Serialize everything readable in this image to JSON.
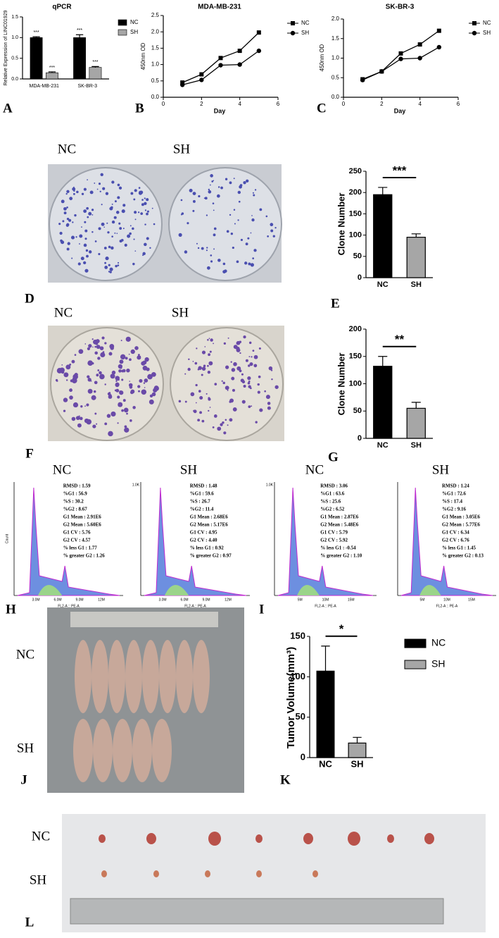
{
  "chart_data": [
    {
      "type": "bar",
      "panel": "A",
      "title": "qPCR",
      "y_label": "Relative Expression of LINC01929",
      "categories": [
        "MDA-MB-231",
        "SK-BR-3"
      ],
      "series": [
        {
          "name": "NC",
          "color": "#000000",
          "values": [
            1.0,
            1.0
          ],
          "errors": [
            0.02,
            0.07
          ],
          "annotations": [
            "***",
            "***"
          ]
        },
        {
          "name": "SH",
          "color": "#a6a6a6",
          "values": [
            0.15,
            0.28
          ],
          "errors": [
            0.02,
            0.02
          ],
          "annotations": [
            "***",
            "***"
          ]
        }
      ],
      "ylim": [
        0,
        1.5
      ],
      "yticks": [
        {
          "value": 0,
          "label": "0.0"
        },
        0.5,
        {
          "value": 1,
          "label": "1.0"
        },
        1.5
      ]
    },
    {
      "type": "line",
      "panel": "B",
      "title": "MDA-MB-231",
      "x_label": "Day",
      "y_label": "450nm OD",
      "x": [
        1,
        2,
        3,
        4,
        5
      ],
      "series": [
        {
          "name": "NC",
          "color": "#000000",
          "marker": "square",
          "values": [
            0.45,
            0.7,
            1.2,
            1.42,
            1.98
          ]
        },
        {
          "name": "SH",
          "color": "#000000",
          "marker": "circle",
          "values": [
            0.38,
            0.53,
            0.98,
            1.0,
            1.42
          ]
        }
      ],
      "xlim": [
        0,
        6
      ],
      "xticks": [
        0,
        2,
        4,
        6
      ],
      "ylim": [
        0,
        2.5
      ],
      "yticks": [
        {
          "value": 0,
          "label": "0.0"
        },
        0.5,
        {
          "value": 1,
          "label": "1.0"
        },
        1.5,
        {
          "value": 2,
          "label": "2.0"
        },
        2.5
      ]
    },
    {
      "type": "line",
      "panel": "C",
      "title": "SK-BR-3",
      "x_label": "Day",
      "y_label": "450nm OD",
      "x": [
        1,
        2,
        3,
        4,
        5
      ],
      "series": [
        {
          "name": "NC",
          "color": "#000000",
          "marker": "square",
          "values": [
            0.46,
            0.66,
            1.12,
            1.35,
            1.7
          ]
        },
        {
          "name": "SH",
          "color": "#000000",
          "marker": "circle",
          "values": [
            0.44,
            0.66,
            0.98,
            1.0,
            1.28
          ]
        }
      ],
      "xlim": [
        0,
        6
      ],
      "xticks": [
        0,
        2,
        4,
        6
      ],
      "ylim": [
        0,
        2
      ],
      "yticks": [
        {
          "value": 0,
          "label": "0.0"
        },
        0.5,
        {
          "value": 1,
          "label": "1.0"
        },
        1.5,
        {
          "value": 2,
          "label": "2.0"
        }
      ]
    },
    {
      "type": "bar",
      "panel": "E",
      "y_label": "Clone Number",
      "categories": [
        "NC",
        "SH"
      ],
      "values": [
        195,
        95
      ],
      "errors": [
        17,
        8
      ],
      "colors": [
        "#000000",
        "#a6a6a6"
      ],
      "significance": "***",
      "ylim": [
        0,
        250
      ],
      "yticks": [
        0,
        50,
        100,
        150,
        200,
        250
      ]
    },
    {
      "type": "bar",
      "panel": "G",
      "y_label": "Clone Number",
      "categories": [
        "NC",
        "SH"
      ],
      "values": [
        132,
        55
      ],
      "errors": [
        18,
        11
      ],
      "colors": [
        "#000000",
        "#a6a6a6"
      ],
      "significance": "**",
      "ylim": [
        0,
        200
      ],
      "yticks": [
        0,
        50,
        100,
        150,
        200
      ]
    },
    {
      "type": "bar",
      "panel": "K",
      "y_label": "Tumor Volume(mm³)",
      "categories": [
        "NC",
        "SH"
      ],
      "values": [
        107,
        18
      ],
      "errors": [
        31,
        7
      ],
      "colors": [
        "#000000",
        "#a6a6a6"
      ],
      "significance": "*",
      "legend": true,
      "ylim": [
        0,
        150
      ],
      "yticks": [
        0,
        50,
        100,
        150
      ]
    }
  ],
  "photo_panels": {
    "D": {
      "letter": "D",
      "labels": [
        "NC",
        "SH"
      ]
    },
    "F": {
      "letter": "F",
      "labels": [
        "NC",
        "SH"
      ]
    },
    "J": {
      "letter": "J",
      "labels": [
        "NC",
        "SH"
      ]
    },
    "L": {
      "letter": "L",
      "labels": [
        "NC",
        "SH"
      ]
    }
  },
  "flow_panels": {
    "letters": [
      "H",
      "I"
    ],
    "plots": [
      {
        "group": "NC",
        "y_label": "Count",
        "x_label": "FL2-A :: PE-A",
        "x_ticks": [
          "3.0M",
          "6.0M",
          "9.0M",
          "12M"
        ],
        "stats": [
          "RMSD : 1.59",
          "%G1 : 56.9",
          "%S : 30.2",
          "%G2 : 8.67",
          "G1 Mean : 2.91E6",
          "G2 Mean : 5.60E6",
          "G1 CV : 5.76",
          "G2 CV : 4.57",
          "% less G1 : 1.77",
          "% greater G2 : 1.26"
        ]
      },
      {
        "group": "SH",
        "y_tick": "1.0K",
        "x_label": "FL2-A :: PE-A",
        "x_ticks": [
          "3.0M",
          "6.0M",
          "9.0M",
          "12M"
        ],
        "stats": [
          "RMSD : 1.48",
          "%G1 : 59.6",
          "%S : 26.7",
          "%G2 : 11.4",
          "G1 Mean : 2.68E6",
          "G2 Mean : 5.17E6",
          "G1 CV : 4.95",
          "G2 CV : 4.40",
          "% less G1 : 0.92",
          "% greater G2 : 0.97"
        ]
      },
      {
        "group": "NC",
        "y_tick": "1.0K",
        "x_label": "FL2-A :: PE-A",
        "x_ticks": [
          "5M",
          "10M",
          "15M"
        ],
        "stats": [
          "RMSD : 3.06",
          "%G1 : 63.6",
          "%S : 25.6",
          "%G2 : 6.52",
          "G1 Mean : 2.87E6",
          "G2 Mean : 5.48E6",
          "G1 CV : 5.79",
          "G2 CV : 5.92",
          "% less G1 : -0.54",
          "% greater G2 : 1.10"
        ]
      },
      {
        "group": "SH",
        "x_label": "FL2-A :: PE-A",
        "x_ticks": [
          "5M",
          "10M",
          "15M"
        ],
        "stats": [
          "RMSD : 1.24",
          "%G1 : 72.6",
          "%S : 17.4",
          "%G2 : 9.16",
          "G1 Mean : 3.05E6",
          "G2 Mean : 5.77E6",
          "G1 CV : 6.34",
          "G2 CV : 6.76",
          "% less G1 : 1.45",
          "% greater G2 : 0.13"
        ]
      }
    ]
  }
}
